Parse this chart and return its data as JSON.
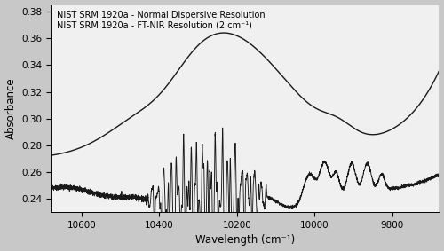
{
  "title": "",
  "xlabel": "Wavelength (cm⁻¹)",
  "ylabel": "Absorbance",
  "xlim": [
    10680,
    9680
  ],
  "ylim": [
    0.23,
    0.385
  ],
  "yticks": [
    0.24,
    0.26,
    0.28,
    0.3,
    0.32,
    0.34,
    0.36,
    0.38
  ],
  "xticks": [
    10600,
    10400,
    10200,
    10000,
    9800
  ],
  "legend": [
    "NIST SRM 1920a - Normal Dispersive Resolution",
    "NIST SRM 1920a - FT-NIR Resolution (2 cm⁻¹)"
  ],
  "line_color": "#1a1a1a",
  "background_color": "#f0f0f0",
  "fig_background": "#c8c8c8",
  "figsize": [
    5.0,
    2.83
  ],
  "dpi": 100
}
